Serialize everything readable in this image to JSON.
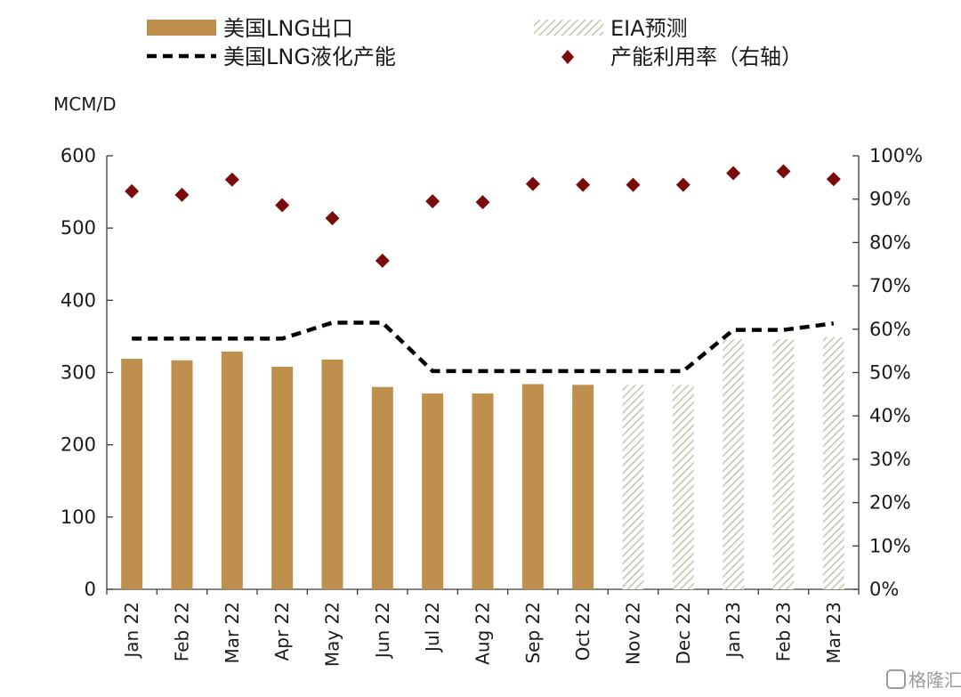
{
  "chart_data": {
    "type": "bar",
    "categories": [
      "Jan 22",
      "Feb 22",
      "Mar 22",
      "Apr 22",
      "May 22",
      "Jun 22",
      "Jul 22",
      "Aug 22",
      "Sep 22",
      "Oct 22",
      "Nov 22",
      "Dec 22",
      "Jan 23",
      "Feb 23",
      "Mar 23"
    ],
    "ylabel": "MCM/D",
    "ylim": [
      0,
      600
    ],
    "yticks": [
      "0",
      "100",
      "200",
      "300",
      "400",
      "500",
      "600"
    ],
    "y2lim": [
      0,
      100
    ],
    "y2ticks": [
      "0%",
      "10%",
      "20%",
      "30%",
      "40%",
      "50%",
      "60%",
      "70%",
      "80%",
      "90%",
      "100%"
    ],
    "series": [
      {
        "name": "美国LNG出口",
        "type": "bar",
        "color": "#BF8F4E",
        "values": [
          319,
          317,
          329,
          308,
          318,
          280,
          271,
          271,
          284,
          283,
          null,
          null,
          null,
          null,
          null
        ]
      },
      {
        "name": "EIA预测",
        "type": "bar",
        "pattern": "hatched",
        "color": "#C8C6AE",
        "values": [
          null,
          null,
          null,
          null,
          null,
          null,
          null,
          null,
          null,
          null,
          283,
          283,
          346,
          346,
          349
        ]
      },
      {
        "name": "美国LNG液化产能",
        "type": "line",
        "style": "dashed",
        "color": "#000000",
        "values": [
          347,
          347,
          347,
          347,
          369,
          369,
          302,
          302,
          302,
          302,
          302,
          302,
          359,
          359,
          368
        ]
      },
      {
        "name": "产能利用率（右轴）",
        "type": "scatter",
        "marker": "diamond",
        "axis": "right",
        "color": "#7B0C0C",
        "values": [
          91.8,
          91.0,
          94.5,
          88.6,
          85.6,
          75.8,
          89.5,
          89.3,
          93.5,
          93.3,
          93.3,
          93.3,
          96.0,
          96.4,
          94.6
        ]
      }
    ]
  },
  "watermark": "格隆汇"
}
